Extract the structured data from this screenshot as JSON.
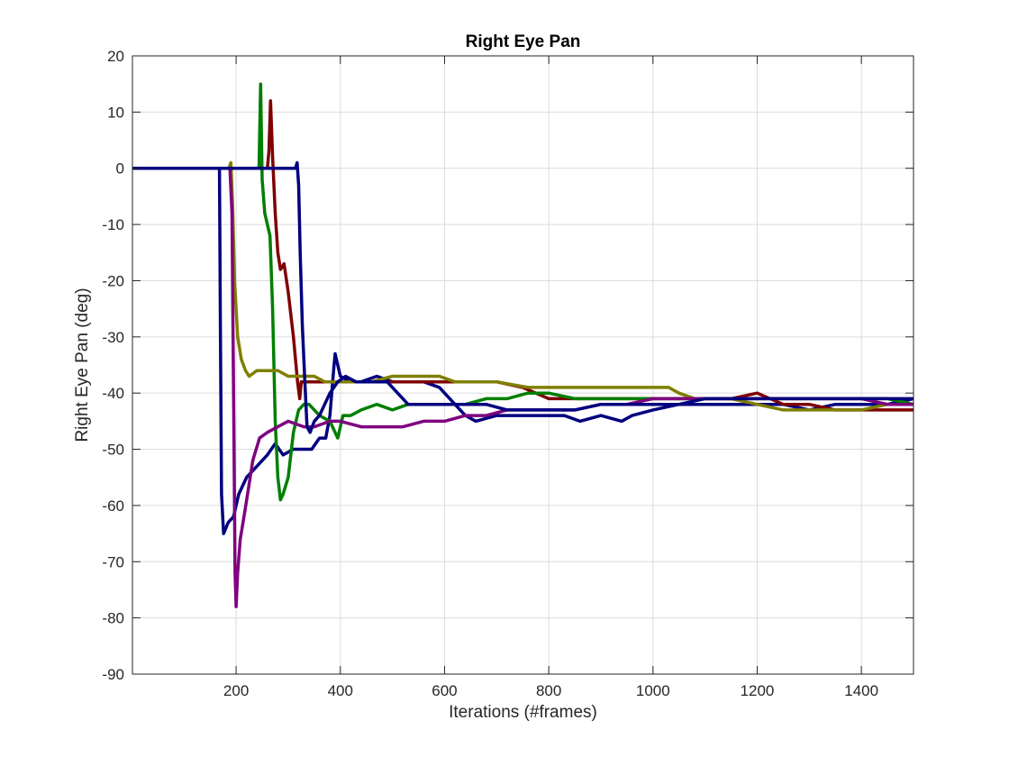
{
  "chart_data": {
    "type": "line",
    "title": "Right Eye Pan",
    "xlabel": "Iterations (#frames)",
    "ylabel": "Right Eye Pan (deg)",
    "xlim": [
      1,
      1500
    ],
    "ylim": [
      -90,
      20
    ],
    "xticks": [
      200,
      400,
      600,
      800,
      1000,
      1200,
      1400
    ],
    "yticks": [
      20,
      10,
      0,
      -10,
      -20,
      -30,
      -40,
      -50,
      -60,
      -70,
      -80,
      -90
    ],
    "grid": true,
    "series": [
      {
        "color": "#00007f",
        "points": [
          [
            1,
            0
          ],
          [
            168,
            0
          ],
          [
            170,
            -30
          ],
          [
            172,
            -58
          ],
          [
            176,
            -65
          ],
          [
            185,
            -63
          ],
          [
            195,
            -62
          ],
          [
            205,
            -58
          ],
          [
            220,
            -55
          ],
          [
            240,
            -53
          ],
          [
            260,
            -51
          ],
          [
            275,
            -49
          ],
          [
            290,
            -51
          ],
          [
            310,
            -50
          ],
          [
            330,
            -50
          ],
          [
            345,
            -50
          ],
          [
            360,
            -48
          ],
          [
            372,
            -48
          ],
          [
            380,
            -44
          ],
          [
            388,
            -35
          ],
          [
            390,
            -33
          ],
          [
            400,
            -37
          ],
          [
            420,
            -38
          ],
          [
            440,
            -38
          ],
          [
            470,
            -37
          ],
          [
            500,
            -38
          ],
          [
            530,
            -38
          ],
          [
            560,
            -38
          ],
          [
            590,
            -39
          ],
          [
            600,
            -40
          ],
          [
            620,
            -42
          ],
          [
            640,
            -44
          ],
          [
            660,
            -45
          ],
          [
            700,
            -44
          ],
          [
            740,
            -44
          ],
          [
            790,
            -44
          ],
          [
            830,
            -44
          ],
          [
            860,
            -45
          ],
          [
            900,
            -44
          ],
          [
            940,
            -45
          ],
          [
            960,
            -44
          ],
          [
            1000,
            -43
          ],
          [
            1050,
            -42
          ],
          [
            1100,
            -42
          ],
          [
            1150,
            -42
          ],
          [
            1200,
            -42
          ],
          [
            1250,
            -42
          ],
          [
            1300,
            -43
          ],
          [
            1350,
            -42
          ],
          [
            1400,
            -42
          ],
          [
            1450,
            -42
          ],
          [
            1500,
            -41
          ]
        ]
      },
      {
        "color": "#7f0000",
        "points": [
          [
            1,
            0
          ],
          [
            260,
            0
          ],
          [
            263,
            3
          ],
          [
            266,
            12
          ],
          [
            270,
            2
          ],
          [
            275,
            -8
          ],
          [
            280,
            -15
          ],
          [
            285,
            -18
          ],
          [
            292,
            -17
          ],
          [
            300,
            -22
          ],
          [
            310,
            -30
          ],
          [
            318,
            -38
          ],
          [
            322,
            -41
          ],
          [
            325,
            -38
          ],
          [
            340,
            -38
          ],
          [
            360,
            -38
          ],
          [
            400,
            -38
          ],
          [
            450,
            -38
          ],
          [
            500,
            -38
          ],
          [
            550,
            -38
          ],
          [
            600,
            -38
          ],
          [
            650,
            -38
          ],
          [
            700,
            -38
          ],
          [
            750,
            -39
          ],
          [
            800,
            -41
          ],
          [
            850,
            -41
          ],
          [
            900,
            -41
          ],
          [
            950,
            -41
          ],
          [
            1000,
            -41
          ],
          [
            1050,
            -41
          ],
          [
            1100,
            -41
          ],
          [
            1150,
            -41
          ],
          [
            1200,
            -40
          ],
          [
            1250,
            -42
          ],
          [
            1300,
            -42
          ],
          [
            1350,
            -43
          ],
          [
            1400,
            -43
          ],
          [
            1450,
            -43
          ],
          [
            1500,
            -43
          ]
        ]
      },
      {
        "color": "#007f00",
        "points": [
          [
            1,
            0
          ],
          [
            244,
            0
          ],
          [
            247,
            15
          ],
          [
            250,
            -2
          ],
          [
            255,
            -8
          ],
          [
            265,
            -12
          ],
          [
            270,
            -25
          ],
          [
            275,
            -45
          ],
          [
            280,
            -55
          ],
          [
            285,
            -59
          ],
          [
            290,
            -58
          ],
          [
            300,
            -55
          ],
          [
            310,
            -47
          ],
          [
            320,
            -43
          ],
          [
            330,
            -42
          ],
          [
            340,
            -42
          ],
          [
            360,
            -44
          ],
          [
            380,
            -45
          ],
          [
            395,
            -48
          ],
          [
            405,
            -44
          ],
          [
            420,
            -44
          ],
          [
            440,
            -43
          ],
          [
            470,
            -42
          ],
          [
            500,
            -43
          ],
          [
            530,
            -42
          ],
          [
            560,
            -42
          ],
          [
            600,
            -42
          ],
          [
            640,
            -42
          ],
          [
            680,
            -41
          ],
          [
            720,
            -41
          ],
          [
            760,
            -40
          ],
          [
            800,
            -40
          ],
          [
            850,
            -41
          ],
          [
            900,
            -41
          ],
          [
            950,
            -41
          ],
          [
            1000,
            -41
          ],
          [
            1050,
            -41
          ],
          [
            1100,
            -41
          ],
          [
            1150,
            -41
          ],
          [
            1200,
            -41
          ],
          [
            1250,
            -41
          ],
          [
            1300,
            -41
          ],
          [
            1350,
            -41
          ],
          [
            1400,
            -41
          ],
          [
            1450,
            -41
          ],
          [
            1500,
            -42
          ]
        ]
      },
      {
        "color": "#7f7f00",
        "points": [
          [
            1,
            0
          ],
          [
            186,
            0
          ],
          [
            190,
            1
          ],
          [
            193,
            -6
          ],
          [
            197,
            -20
          ],
          [
            203,
            -30
          ],
          [
            210,
            -34
          ],
          [
            218,
            -36
          ],
          [
            225,
            -37
          ],
          [
            240,
            -36
          ],
          [
            260,
            -36
          ],
          [
            280,
            -36
          ],
          [
            300,
            -37
          ],
          [
            330,
            -37
          ],
          [
            350,
            -37
          ],
          [
            370,
            -38
          ],
          [
            400,
            -38
          ],
          [
            430,
            -38
          ],
          [
            460,
            -38
          ],
          [
            500,
            -37
          ],
          [
            530,
            -37
          ],
          [
            560,
            -37
          ],
          [
            590,
            -37
          ],
          [
            620,
            -38
          ],
          [
            660,
            -38
          ],
          [
            700,
            -38
          ],
          [
            760,
            -39
          ],
          [
            800,
            -39
          ],
          [
            860,
            -39
          ],
          [
            900,
            -39
          ],
          [
            950,
            -39
          ],
          [
            1000,
            -39
          ],
          [
            1030,
            -39
          ],
          [
            1050,
            -40
          ],
          [
            1080,
            -41
          ],
          [
            1100,
            -41
          ],
          [
            1150,
            -41
          ],
          [
            1200,
            -42
          ],
          [
            1250,
            -43
          ],
          [
            1300,
            -43
          ],
          [
            1350,
            -43
          ],
          [
            1400,
            -43
          ],
          [
            1450,
            -42
          ],
          [
            1500,
            -42
          ]
        ]
      },
      {
        "color": "#7f007f",
        "points": [
          [
            1,
            0
          ],
          [
            180,
            0
          ],
          [
            188,
            0
          ],
          [
            192,
            -8
          ],
          [
            196,
            -50
          ],
          [
            198,
            -72
          ],
          [
            200,
            -78
          ],
          [
            203,
            -72
          ],
          [
            208,
            -66
          ],
          [
            215,
            -62
          ],
          [
            222,
            -58
          ],
          [
            232,
            -52
          ],
          [
            245,
            -48
          ],
          [
            260,
            -47
          ],
          [
            280,
            -46
          ],
          [
            300,
            -45
          ],
          [
            330,
            -46
          ],
          [
            350,
            -46
          ],
          [
            380,
            -45
          ],
          [
            400,
            -45
          ],
          [
            440,
            -46
          ],
          [
            480,
            -46
          ],
          [
            520,
            -46
          ],
          [
            560,
            -45
          ],
          [
            600,
            -45
          ],
          [
            640,
            -44
          ],
          [
            680,
            -44
          ],
          [
            720,
            -43
          ],
          [
            760,
            -43
          ],
          [
            800,
            -43
          ],
          [
            850,
            -43
          ],
          [
            900,
            -42
          ],
          [
            950,
            -42
          ],
          [
            1000,
            -41
          ],
          [
            1050,
            -41
          ],
          [
            1100,
            -41
          ],
          [
            1150,
            -41
          ],
          [
            1200,
            -41
          ],
          [
            1250,
            -41
          ],
          [
            1300,
            -41
          ],
          [
            1350,
            -41
          ],
          [
            1400,
            -41
          ],
          [
            1450,
            -42
          ],
          [
            1500,
            -42
          ]
        ]
      },
      {
        "color": "#00007f",
        "points": [
          [
            1,
            0
          ],
          [
            314,
            0
          ],
          [
            317,
            1
          ],
          [
            320,
            -3
          ],
          [
            323,
            -15
          ],
          [
            327,
            -28
          ],
          [
            332,
            -38
          ],
          [
            336,
            -46
          ],
          [
            342,
            -47
          ],
          [
            350,
            -45
          ],
          [
            360,
            -44
          ],
          [
            380,
            -40
          ],
          [
            395,
            -38
          ],
          [
            410,
            -37
          ],
          [
            430,
            -38
          ],
          [
            460,
            -38
          ],
          [
            490,
            -38
          ],
          [
            510,
            -40
          ],
          [
            530,
            -42
          ],
          [
            560,
            -42
          ],
          [
            600,
            -42
          ],
          [
            640,
            -42
          ],
          [
            680,
            -42
          ],
          [
            720,
            -43
          ],
          [
            760,
            -43
          ],
          [
            800,
            -43
          ],
          [
            850,
            -43
          ],
          [
            900,
            -42
          ],
          [
            950,
            -42
          ],
          [
            1000,
            -42
          ],
          [
            1050,
            -42
          ],
          [
            1100,
            -41
          ],
          [
            1150,
            -41
          ],
          [
            1200,
            -41
          ],
          [
            1250,
            -41
          ],
          [
            1300,
            -41
          ],
          [
            1350,
            -41
          ],
          [
            1400,
            -41
          ],
          [
            1450,
            -41
          ],
          [
            1500,
            -41
          ]
        ]
      }
    ]
  }
}
